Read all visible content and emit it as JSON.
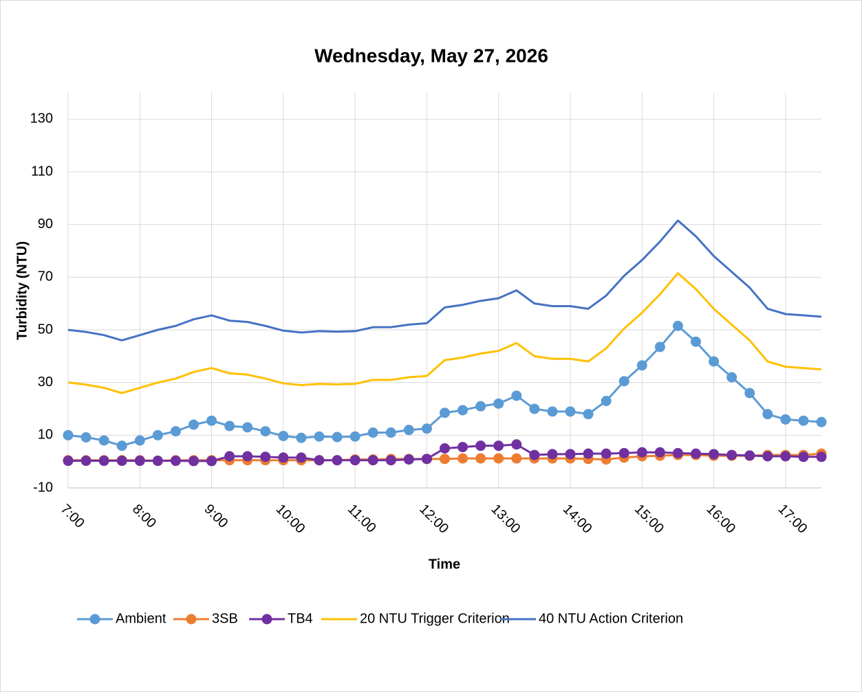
{
  "chart_data": {
    "type": "line",
    "title": "Wednesday, May 27, 2026",
    "x_title": "Time",
    "y_title": "Turbidity (NTU)",
    "categories": [
      "7:00",
      null,
      null,
      null,
      "8:00",
      null,
      null,
      null,
      "9:00",
      null,
      null,
      null,
      "10:00",
      null,
      null,
      null,
      "11:00",
      null,
      null,
      null,
      "12:00",
      null,
      null,
      null,
      "13:00",
      null,
      null,
      null,
      "14:00",
      null,
      null,
      null,
      "15:00",
      null,
      null,
      null,
      "16:00",
      null,
      null,
      null,
      "17:00",
      null,
      null
    ],
    "ylim": [
      -10,
      140
    ],
    "yticks": [
      -10,
      10,
      30,
      50,
      70,
      90,
      110,
      130
    ],
    "grid": true,
    "legend": "bottom",
    "series": [
      {
        "name": "Ambient",
        "color": "#5b9bd5",
        "markers": true,
        "values": [
          10,
          9.2,
          8,
          6,
          8,
          10,
          11.5,
          14,
          15.5,
          13.5,
          13,
          11.5,
          9.7,
          9,
          9.5,
          9.3,
          9.5,
          11,
          11,
          12,
          12.5,
          18.5,
          19.5,
          21,
          22,
          25,
          20,
          19,
          19,
          18,
          23,
          30.5,
          36.5,
          43.5,
          51.5,
          45.5,
          38,
          32,
          26,
          18,
          16,
          15.5,
          15
        ]
      },
      {
        "name": "3SB",
        "color": "#ed7d31",
        "markers": true,
        "values": [
          0.5,
          0.5,
          0.5,
          0.5,
          0.5,
          0.3,
          0.5,
          0.5,
          0.5,
          0.5,
          0.5,
          0.5,
          0.5,
          0.5,
          0.5,
          0.5,
          0.8,
          0.8,
          1,
          1,
          1,
          1,
          1.2,
          1.2,
          1.2,
          1.2,
          1.2,
          1.2,
          1.2,
          1,
          0.8,
          1.5,
          2,
          2.2,
          2.5,
          2.5,
          2.2,
          2.2,
          2.2,
          2.5,
          2.5,
          2.5,
          3
        ]
      },
      {
        "name": "TB4",
        "color": "#7030a0",
        "markers": true,
        "values": [
          0.3,
          0.3,
          0.3,
          0.3,
          0.3,
          0.3,
          0.3,
          0.2,
          0.2,
          2,
          2,
          1.8,
          1.5,
          1.5,
          0.5,
          0.5,
          0.5,
          0.5,
          0.5,
          0.8,
          1,
          5,
          5.5,
          6,
          6,
          6.5,
          2.5,
          2.8,
          2.8,
          3,
          3,
          3.2,
          3.5,
          3.5,
          3.2,
          3,
          2.8,
          2.5,
          2.3,
          2,
          2,
          1.8,
          1.8
        ]
      },
      {
        "name": "20 NTU Trigger Criterion",
        "color": "#ffc000",
        "markers": false,
        "values": [
          30,
          29.2,
          28,
          26,
          28,
          30,
          31.5,
          34,
          35.5,
          33.5,
          33,
          31.5,
          29.7,
          29,
          29.5,
          29.3,
          29.5,
          31,
          31,
          32,
          32.5,
          38.5,
          39.5,
          41,
          42,
          45,
          40,
          39,
          39,
          38,
          43,
          50.5,
          56.5,
          63.5,
          71.5,
          65.5,
          58,
          52,
          46,
          38,
          36,
          35.5,
          35
        ]
      },
      {
        "name": "40 NTU Action Criterion",
        "color": "#4472c4",
        "markers": false,
        "values": [
          50,
          49.2,
          48,
          46,
          48,
          50,
          51.5,
          54,
          55.5,
          53.5,
          53,
          51.5,
          49.7,
          49,
          49.5,
          49.3,
          49.5,
          51,
          51,
          52,
          52.5,
          58.5,
          59.5,
          61,
          62,
          65,
          60,
          59,
          59,
          58,
          63,
          70.5,
          76.5,
          83.5,
          91.5,
          85.5,
          78,
          72,
          66,
          58,
          56,
          55.5,
          55
        ]
      }
    ]
  }
}
